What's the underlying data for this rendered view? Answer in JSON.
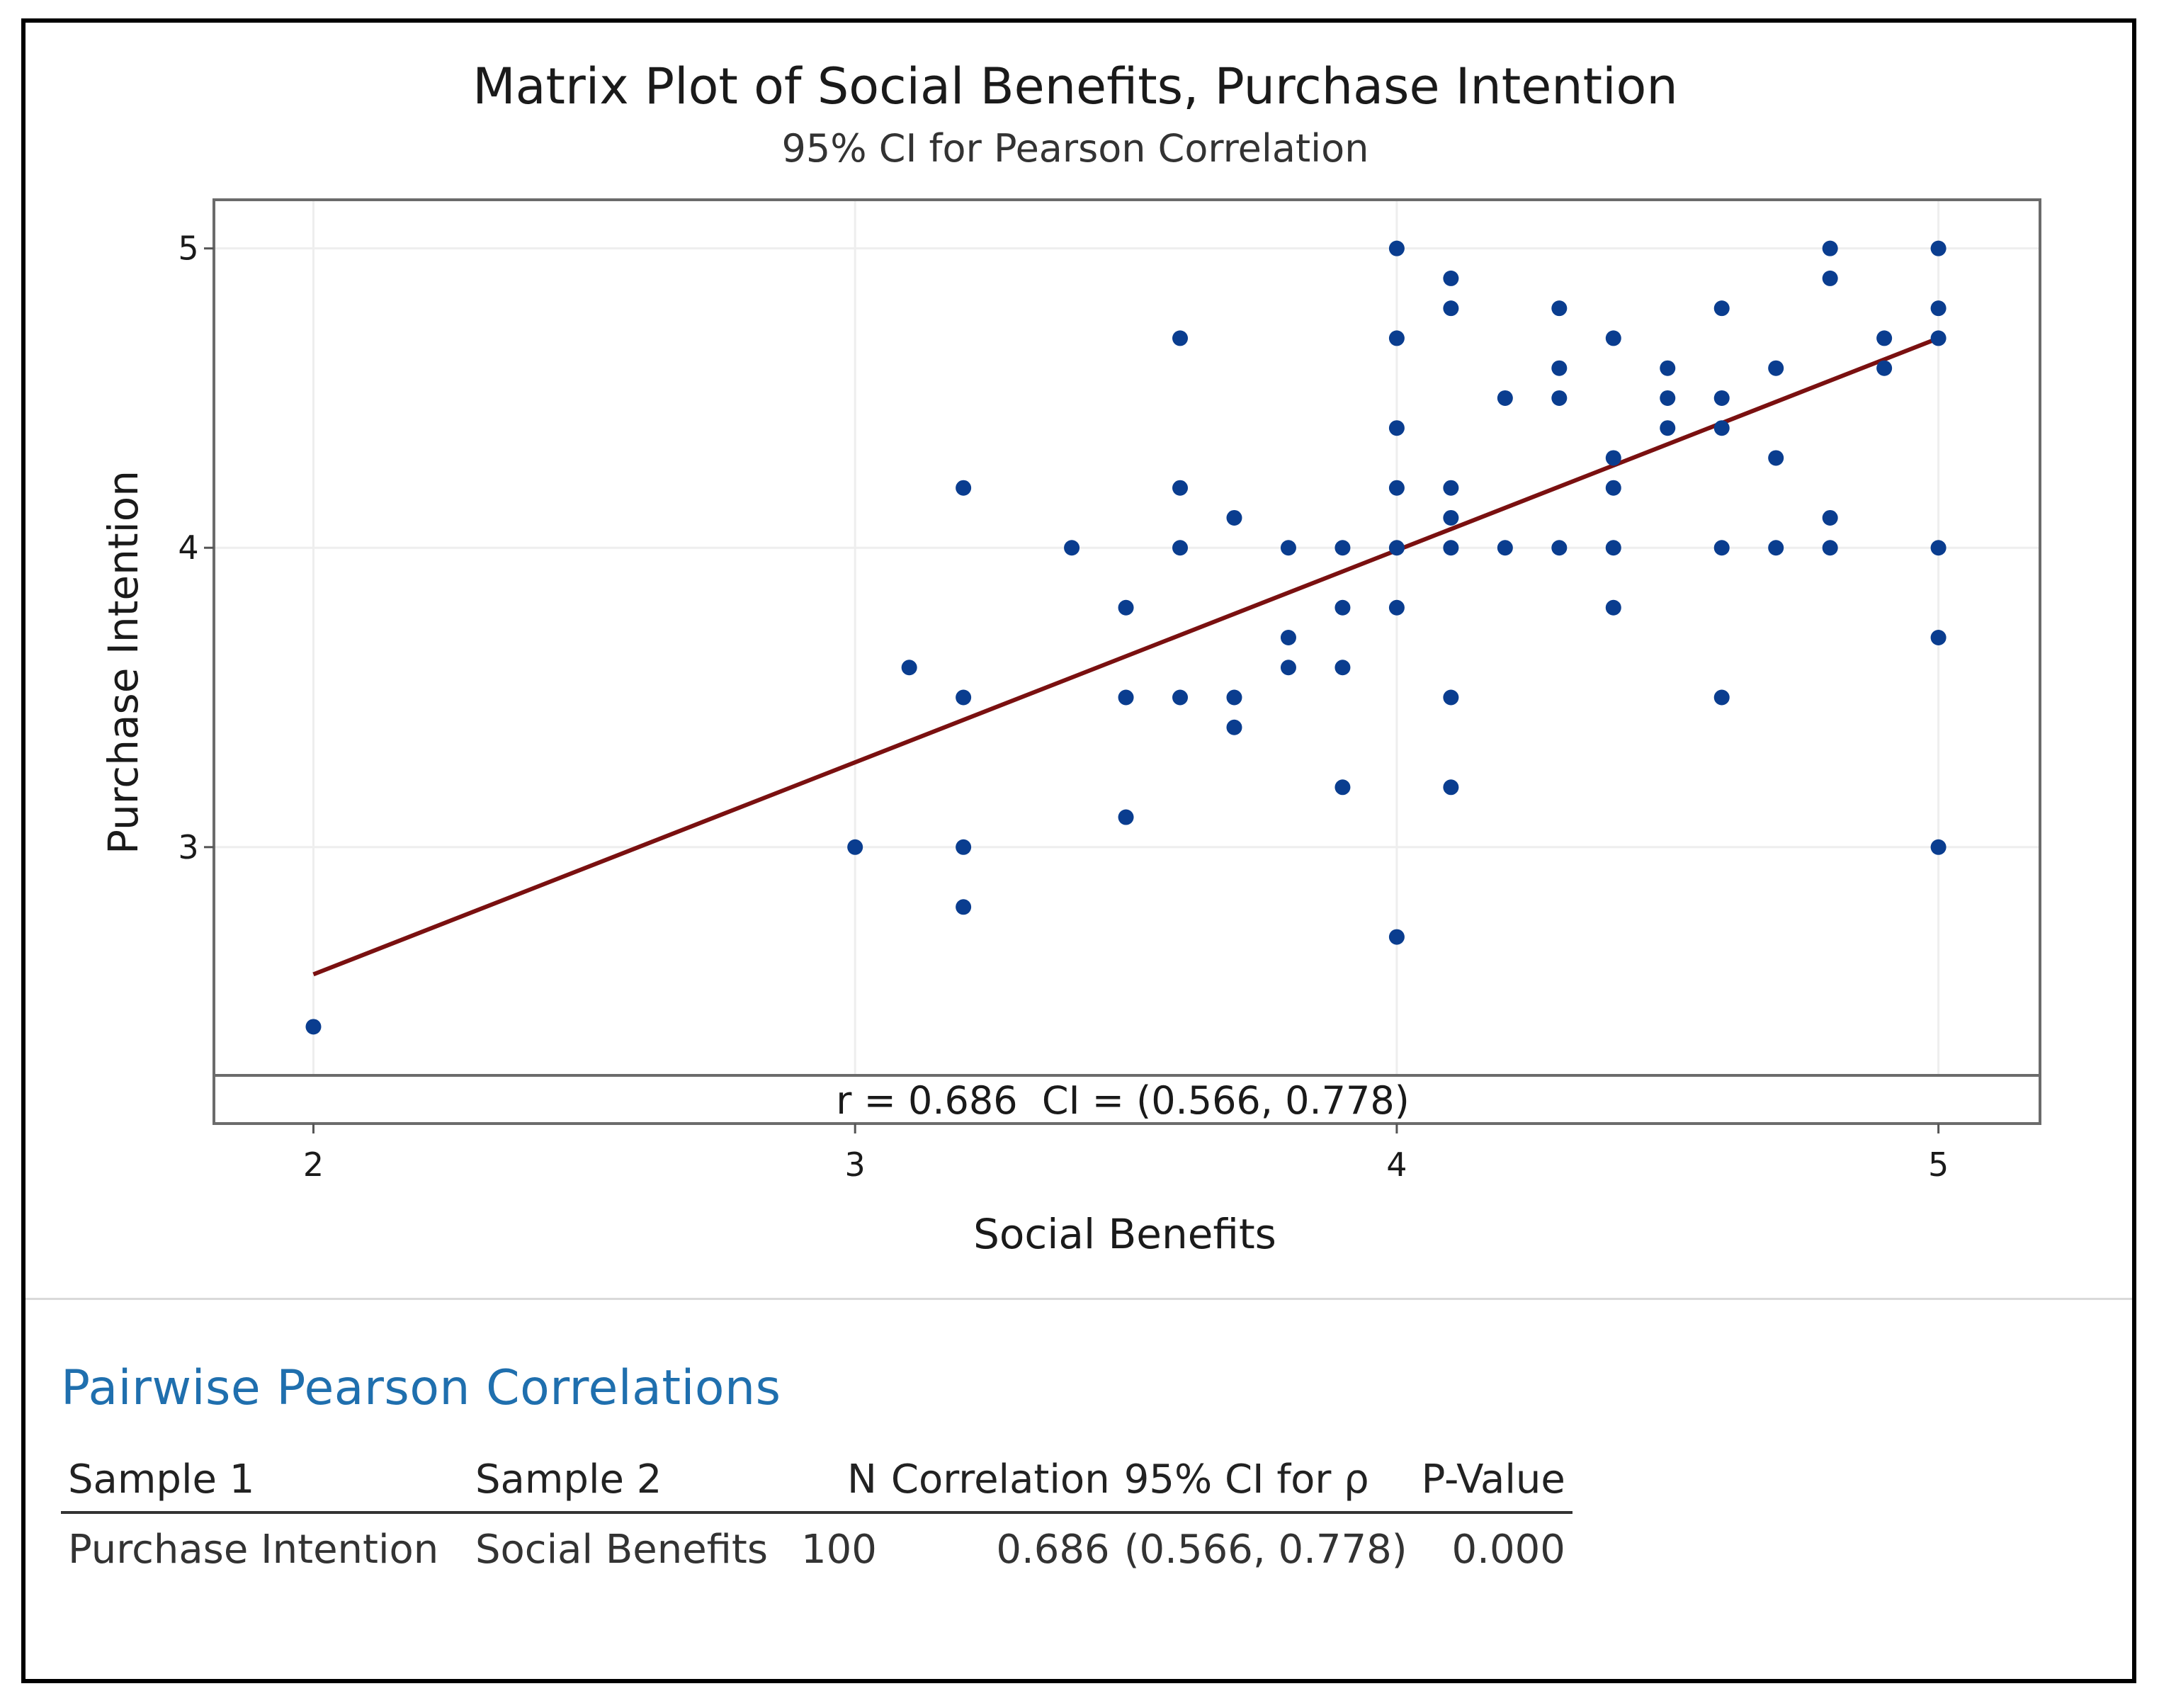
{
  "chart_data": {
    "type": "scatter",
    "title": "Matrix Plot of Social Benefits, Purchase Intention",
    "subtitle": "95% CI for Pearson Correlation",
    "xlabel": "Social Benefits",
    "ylabel": "Purchase Intention",
    "xlim": [
      1.8163,
      5.1875
    ],
    "ylim": [
      2.2375,
      5.1625
    ],
    "xticks": [
      2,
      3,
      4,
      5
    ],
    "yticks": [
      3,
      4,
      5
    ],
    "grid": true,
    "colors": {
      "points": "#0a3d8f",
      "fit_line": "#7a1010",
      "grid": "#eeeeee"
    },
    "points": [
      {
        "x": 2.0,
        "y": 2.4
      },
      {
        "x": 3.0,
        "y": 3.0
      },
      {
        "x": 3.1,
        "y": 3.6
      },
      {
        "x": 3.2,
        "y": 4.2
      },
      {
        "x": 3.2,
        "y": 3.5
      },
      {
        "x": 3.2,
        "y": 3.0
      },
      {
        "x": 3.2,
        "y": 2.8
      },
      {
        "x": 3.4,
        "y": 4.0
      },
      {
        "x": 3.5,
        "y": 3.8
      },
      {
        "x": 3.5,
        "y": 3.5
      },
      {
        "x": 3.5,
        "y": 3.1
      },
      {
        "x": 3.6,
        "y": 4.7
      },
      {
        "x": 3.6,
        "y": 4.2
      },
      {
        "x": 3.6,
        "y": 4.0
      },
      {
        "x": 3.6,
        "y": 3.5
      },
      {
        "x": 3.7,
        "y": 4.1
      },
      {
        "x": 3.7,
        "y": 3.5
      },
      {
        "x": 3.7,
        "y": 3.4
      },
      {
        "x": 3.8,
        "y": 4.0
      },
      {
        "x": 3.8,
        "y": 3.7
      },
      {
        "x": 3.8,
        "y": 3.6
      },
      {
        "x": 3.9,
        "y": 4.0
      },
      {
        "x": 3.9,
        "y": 3.8
      },
      {
        "x": 3.9,
        "y": 3.6
      },
      {
        "x": 3.9,
        "y": 3.2
      },
      {
        "x": 4.0,
        "y": 5.0
      },
      {
        "x": 4.0,
        "y": 4.7
      },
      {
        "x": 4.0,
        "y": 4.4
      },
      {
        "x": 4.0,
        "y": 4.2
      },
      {
        "x": 4.0,
        "y": 4.0
      },
      {
        "x": 4.0,
        "y": 3.8
      },
      {
        "x": 4.0,
        "y": 2.7
      },
      {
        "x": 4.1,
        "y": 4.9
      },
      {
        "x": 4.1,
        "y": 4.8
      },
      {
        "x": 4.1,
        "y": 4.2
      },
      {
        "x": 4.1,
        "y": 4.1
      },
      {
        "x": 4.1,
        "y": 4.0
      },
      {
        "x": 4.1,
        "y": 3.5
      },
      {
        "x": 4.1,
        "y": 3.2
      },
      {
        "x": 4.2,
        "y": 4.5
      },
      {
        "x": 4.2,
        "y": 4.0
      },
      {
        "x": 4.3,
        "y": 4.8
      },
      {
        "x": 4.3,
        "y": 4.6
      },
      {
        "x": 4.3,
        "y": 4.5
      },
      {
        "x": 4.3,
        "y": 4.0
      },
      {
        "x": 4.4,
        "y": 4.7
      },
      {
        "x": 4.4,
        "y": 4.3
      },
      {
        "x": 4.4,
        "y": 4.2
      },
      {
        "x": 4.4,
        "y": 4.0
      },
      {
        "x": 4.4,
        "y": 3.8
      },
      {
        "x": 4.5,
        "y": 4.6
      },
      {
        "x": 4.5,
        "y": 4.5
      },
      {
        "x": 4.5,
        "y": 4.4
      },
      {
        "x": 4.6,
        "y": 4.8
      },
      {
        "x": 4.6,
        "y": 4.5
      },
      {
        "x": 4.6,
        "y": 4.4
      },
      {
        "x": 4.6,
        "y": 4.0
      },
      {
        "x": 4.6,
        "y": 3.5
      },
      {
        "x": 4.7,
        "y": 4.6
      },
      {
        "x": 4.7,
        "y": 4.3
      },
      {
        "x": 4.7,
        "y": 4.0
      },
      {
        "x": 4.8,
        "y": 5.0
      },
      {
        "x": 4.8,
        "y": 4.9
      },
      {
        "x": 4.8,
        "y": 4.1
      },
      {
        "x": 4.8,
        "y": 4.0
      },
      {
        "x": 4.9,
        "y": 4.7
      },
      {
        "x": 4.9,
        "y": 4.6
      },
      {
        "x": 5.0,
        "y": 5.0
      },
      {
        "x": 5.0,
        "y": 4.8
      },
      {
        "x": 5.0,
        "y": 4.7
      },
      {
        "x": 5.0,
        "y": 4.0
      },
      {
        "x": 5.0,
        "y": 3.7
      },
      {
        "x": 5.0,
        "y": 3.0
      }
    ],
    "fit_line": {
      "x_start": 2.0,
      "y_start": 2.575,
      "x_end": 5.0,
      "y_end": 4.7
    },
    "annotation": "r = 0.686  CI = (0.566, 0.778)"
  },
  "results": {
    "section_title": "Pairwise Pearson Correlations",
    "columns": [
      "Sample 1",
      "Sample 2",
      "N",
      "Correlation",
      "95% CI for ρ",
      "P-Value"
    ],
    "rows": [
      [
        "Purchase Intention",
        "Social Benefits",
        "100",
        "0.686",
        "(0.566, 0.778)",
        "0.000"
      ]
    ]
  }
}
